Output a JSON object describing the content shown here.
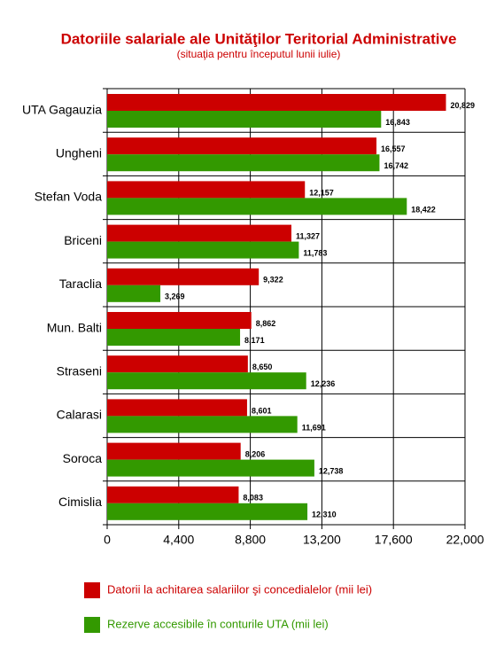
{
  "chart_data": {
    "type": "hbar",
    "title": "Datoriile salariale ale Unităţilor Teritorial Administrative",
    "subtitle": "(situaţia pentru începutul lunii iulie)",
    "categories": [
      "UTA Gagauzia",
      "Ungheni",
      "Stefan Voda",
      "Briceni",
      "Taraclia",
      "Mun. Balti",
      "Straseni",
      "Calarasi",
      "Soroca",
      "Cimislia"
    ],
    "series": [
      {
        "name": "Datorii la achitarea salariilor şi concedialelor (mii lei)",
        "color": "#cc0000",
        "values": [
          20829,
          16557,
          12157,
          11327,
          9322,
          8862,
          8650,
          8601,
          8206,
          8083
        ],
        "value_labels": [
          "20,829",
          "16,557",
          "12,157",
          "11,327",
          "9,322",
          "8,862",
          "8,650",
          "8,601",
          "8,206",
          "8,083"
        ]
      },
      {
        "name": "Rezerve accesibile în conturile UTA (mii lei)",
        "color": "#339900",
        "values": [
          16843,
          16742,
          18422,
          11783,
          3269,
          8171,
          12236,
          11691,
          12738,
          12310
        ],
        "value_labels": [
          "16,843",
          "16,742",
          "18,422",
          "11,783",
          "3,269",
          "8,171",
          "12,236",
          "11,691",
          "12,738",
          "12,310"
        ]
      }
    ],
    "xlim": [
      0,
      22000
    ],
    "xticks": [
      0,
      {
        "value": 4400,
        "label": "4,400"
      },
      {
        "value": 8800,
        "label": "8,800"
      },
      {
        "value": 13200,
        "label": "13,200"
      },
      {
        "value": 17600,
        "label": "17,600"
      },
      {
        "value": 22000,
        "label": "22,000"
      }
    ],
    "grid": true
  }
}
